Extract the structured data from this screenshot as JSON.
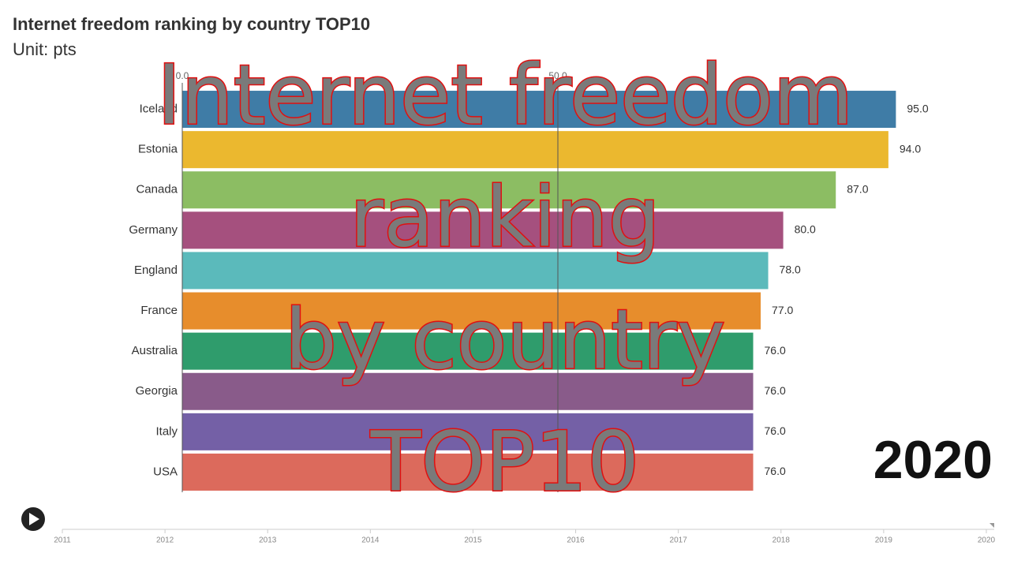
{
  "chart_data": {
    "type": "bar",
    "orientation": "horizontal",
    "title": "Internet freedom ranking by country TOP10",
    "subtitle": "Unit: pts",
    "categories": [
      "Iceland",
      "Estonia",
      "Canada",
      "Germany",
      "England",
      "France",
      "Australia",
      "Georgia",
      "Italy",
      "USA"
    ],
    "values": [
      95,
      94,
      87,
      80,
      78,
      77,
      76,
      76,
      76,
      76
    ],
    "value_labels": [
      "95.0",
      "94.0",
      "87.0",
      "80.0",
      "78.0",
      "77.0",
      "76.0",
      "76.0",
      "76.0",
      "76.0"
    ],
    "colors": [
      "#3f7ca6",
      "#ebb82f",
      "#8cbd63",
      "#a5507e",
      "#5bbabb",
      "#e78d2c",
      "#2f9c6c",
      "#895b8a",
      "#7460a6",
      "#dc6a5c"
    ],
    "xlim": [
      0,
      100
    ],
    "xticks": [
      {
        "value": 0,
        "label": "0.0"
      },
      {
        "value": 50,
        "label": "50.0"
      }
    ],
    "grid": true,
    "year": "2020",
    "timeline": {
      "xlim": [
        2011,
        2020
      ],
      "ticks": [
        2011,
        2012,
        2013,
        2014,
        2015,
        2016,
        2017,
        2018,
        2019,
        2020
      ]
    },
    "overlay_lines": [
      "Internet freedom",
      "ranking",
      "by country",
      "TOP10"
    ]
  }
}
